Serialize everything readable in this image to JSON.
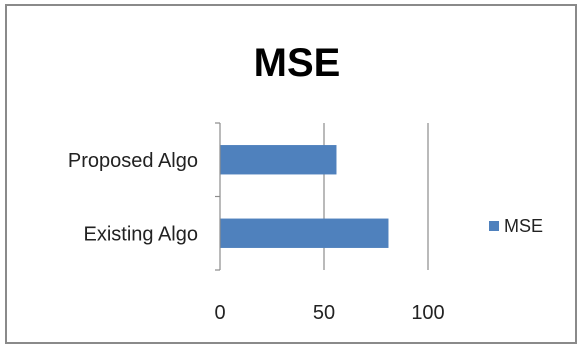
{
  "chart_data": {
    "type": "bar",
    "orientation": "horizontal",
    "title": "MSE",
    "categories": [
      "Existing Algo",
      "Proposed Algo"
    ],
    "series": [
      {
        "name": "MSE",
        "values": [
          81,
          56
        ],
        "color": "#4f81bd"
      }
    ],
    "xlim": [
      0,
      100
    ],
    "xticks": [
      0,
      50,
      100
    ],
    "xlabel": "",
    "ylabel": "",
    "grid": "vertical",
    "legend": "right"
  }
}
